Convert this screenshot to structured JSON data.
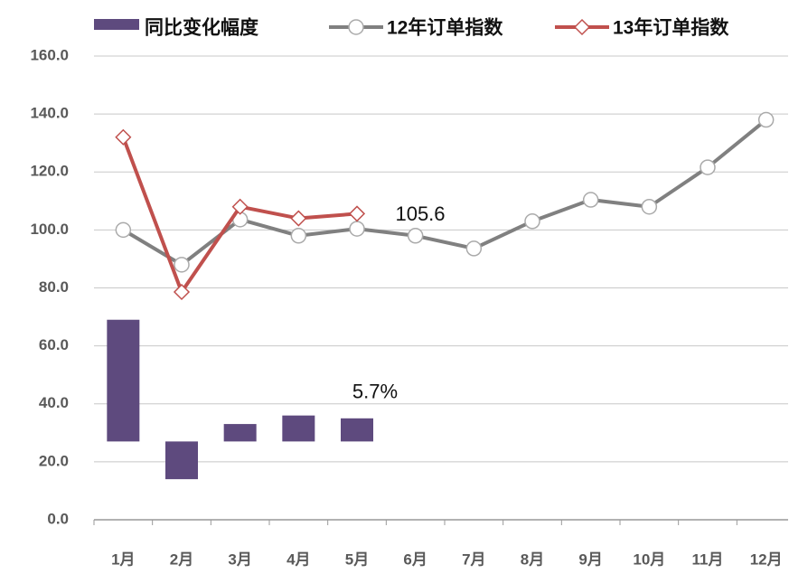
{
  "chart_data": {
    "type": "bar-line",
    "categories": [
      "1月",
      "2月",
      "3月",
      "4月",
      "5月",
      "6月",
      "7月",
      "8月",
      "9月",
      "10月",
      "11月",
      "12月"
    ],
    "series": [
      {
        "name": "同比变化幅度",
        "type": "bar",
        "axis": "y2",
        "color": "#5e4a7e",
        "values": [
          30,
          -9.3,
          4.3,
          6.4,
          5.7,
          null,
          null,
          null,
          null,
          null,
          null,
          null
        ],
        "value_labels": [
          null,
          null,
          null,
          null,
          "5.7%",
          null,
          null,
          null,
          null,
          null,
          null,
          null
        ]
      },
      {
        "name": "12年订单指数",
        "type": "line",
        "color": "#808080",
        "values": [
          100,
          88,
          103.6,
          98,
          100.4,
          98,
          93.6,
          103,
          110.4,
          108,
          121.6,
          138
        ]
      },
      {
        "name": "13年订单指数",
        "type": "line",
        "color": "#c0504d",
        "values": [
          132,
          78.6,
          108,
          104,
          105.6,
          null,
          null,
          null,
          null,
          null,
          null,
          null
        ],
        "value_labels": [
          null,
          null,
          null,
          null,
          "105.6",
          null,
          null,
          null,
          null,
          null,
          null,
          null
        ]
      }
    ],
    "ylim": [
      0,
      160
    ],
    "yticks": [
      {
        "value": 0,
        "label": "0.0"
      },
      {
        "value": 20,
        "label": "20.0"
      },
      {
        "value": 40,
        "label": "40.0"
      },
      {
        "value": 60,
        "label": "60.0"
      },
      {
        "value": 80,
        "label": "80.0"
      },
      {
        "value": 100,
        "label": "100.0"
      },
      {
        "value": 120,
        "label": "120.0"
      },
      {
        "value": 140,
        "label": "140.0"
      },
      {
        "value": 160,
        "label": "160.0"
      }
    ],
    "y2lim": [
      -19.3,
      95
    ],
    "grid": true,
    "legend": "top"
  }
}
